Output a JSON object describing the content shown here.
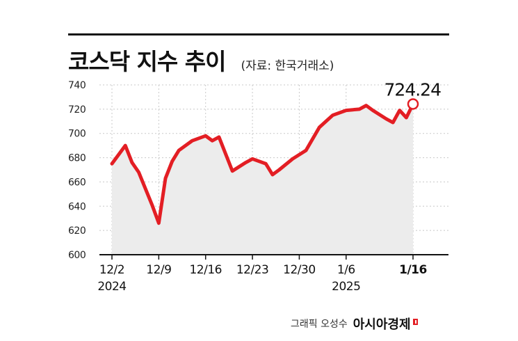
{
  "header": {
    "title": "코스닥 지수 추이",
    "source": "(자료: 한국거래소)"
  },
  "footer": {
    "credit": "그래픽 오성수",
    "publisher": "아시아경제"
  },
  "colors": {
    "line": "#e31e24",
    "area": "#ececec",
    "grid": "#c8c8c8",
    "axis": "#111111"
  },
  "chart_data": {
    "type": "line",
    "title": "코스닥 지수 추이",
    "xlabel": "",
    "ylabel": "",
    "ylim": [
      600,
      740
    ],
    "yticks": [
      600,
      620,
      640,
      660,
      680,
      700,
      720,
      740
    ],
    "xticks": [
      {
        "x": 0,
        "label": "12/2",
        "sub": "2024"
      },
      {
        "x": 7,
        "label": "12/9",
        "sub": ""
      },
      {
        "x": 14,
        "label": "12/16",
        "sub": ""
      },
      {
        "x": 21,
        "label": "12/23",
        "sub": ""
      },
      {
        "x": 28,
        "label": "12/30",
        "sub": ""
      },
      {
        "x": 35,
        "label": "1/6",
        "sub": "2025"
      },
      {
        "x": 45,
        "label": "1/16",
        "sub": ""
      }
    ],
    "grid": true,
    "area_fill": true,
    "series": [
      {
        "x": [
          0,
          2,
          3,
          4,
          6,
          7,
          8,
          9,
          10,
          12,
          14,
          15,
          16,
          18,
          20,
          21,
          23,
          24,
          25,
          27,
          29,
          31,
          32,
          33,
          35,
          37,
          38,
          39,
          41,
          42,
          43,
          44,
          45
        ],
        "y": [
          675,
          690,
          676,
          668,
          641,
          626,
          663,
          677,
          686,
          694,
          698,
          694,
          697,
          669,
          676,
          679,
          675,
          666,
          670,
          679,
          686,
          705,
          710,
          715,
          719,
          720,
          723,
          719,
          712,
          709,
          719,
          713,
          724.24
        ]
      }
    ],
    "annotations": [
      {
        "x": 45,
        "y": 724.24,
        "text": "724.24"
      }
    ]
  }
}
